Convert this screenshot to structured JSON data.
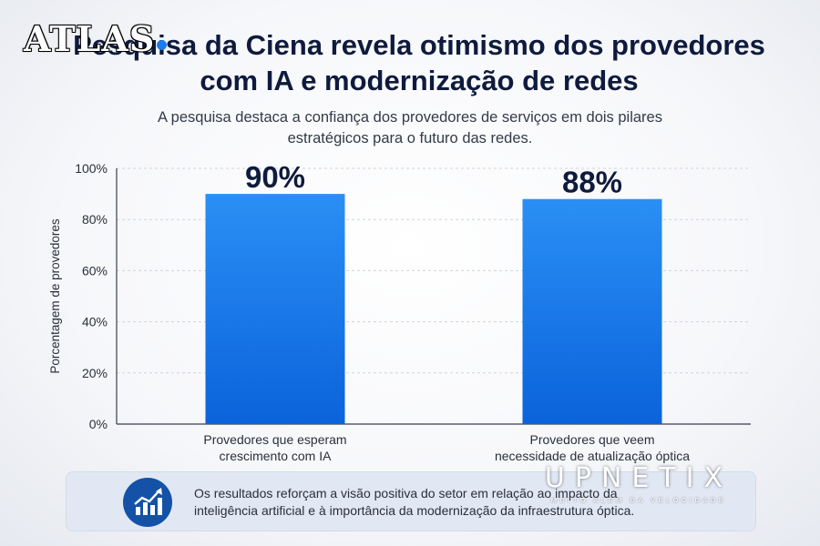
{
  "logos": {
    "atlas": "ATLAS",
    "upnetix": "UPNETIX",
    "upnetix_tagline": "MUITO ALÉM DA VELOCIDADE"
  },
  "header": {
    "title": "Pesquisa da Ciena revela otimismo dos provedores com IA e modernização de redes",
    "subtitle": "A pesquisa destaca a confiança dos provedores de serviços em dois pilares estratégicos para o futuro das redes."
  },
  "chart_data": {
    "type": "bar",
    "categories": [
      "Provedores que esperam crescimento com IA",
      "Provedores que veem necessidade de atualização óptica"
    ],
    "category_lines": [
      [
        "Provedores que esperam",
        "crescimento com IA"
      ],
      [
        "Provedores que veem",
        "necessidade de atualização óptica"
      ]
    ],
    "values": [
      90,
      88
    ],
    "data_labels": [
      "90%",
      "88%"
    ],
    "ylabel": "Porcentagem de provedores",
    "xlabel": "",
    "ylim": [
      0,
      100
    ],
    "yticks": [
      0,
      20,
      40,
      60,
      80,
      100
    ],
    "ytick_labels": [
      "0%",
      "20%",
      "40%",
      "60%",
      "80%",
      "100%"
    ],
    "grid": true,
    "bar_color_top": "#2a8ff5",
    "bar_color_bottom": "#0b63db"
  },
  "footer": {
    "icon": "growth-chart-icon",
    "text_lines": [
      "Os resultados reforçam a visão positiva do setor em relação ao impacto da",
      "inteligência artificial e à importância da modernização da infraestrutura óptica."
    ]
  },
  "colors": {
    "title": "#0f1b3d",
    "accent": "#1b7cf0",
    "footer_bg": "#e1e8f3",
    "icon_bg": "#1452a8"
  }
}
